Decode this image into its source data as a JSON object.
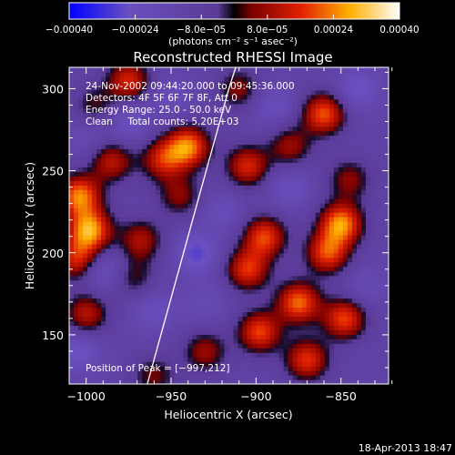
{
  "chart_data": {
    "type": "heatmap",
    "title": "Reconstructed RHESSI Image",
    "xlabel": "Heliocentric X (arcsec)",
    "ylabel": "Heliocentric Y (arcsec)",
    "xlim": [
      -1010,
      -822
    ],
    "ylim": [
      120,
      313
    ],
    "x_ticks": [
      -1000,
      -950,
      -900,
      -850
    ],
    "x_tick_labels": [
      "−1000",
      "−950",
      "−900",
      "−850"
    ],
    "y_ticks": [
      150,
      200,
      250,
      300
    ],
    "y_tick_labels": [
      "150",
      "200",
      "250",
      "300"
    ],
    "annotations": [
      "24-Nov-2002 09:44:20.000 to 09:45:36.000",
      "Detectors: 4F 5F 6F 7F 8F, Att 0",
      "Energy Range: 25.0 - 50.0 keV",
      "Clean     Total counts: 5.20E+03"
    ],
    "peak_label": "Position of Peak = [−997,212]",
    "peak": [
      -997,
      212
    ],
    "limb_points": [
      [
        -964,
        120
      ],
      [
        -956,
        150
      ],
      [
        -948,
        180
      ],
      [
        -940,
        210
      ],
      [
        -932,
        240
      ],
      [
        -924,
        270
      ],
      [
        -916,
        300
      ],
      [
        -912,
        313
      ]
    ],
    "colorbar": {
      "range": [
        -0.0004,
        0.0004
      ],
      "tick_values": [
        -0.0004,
        -0.00024,
        -8e-05,
        8e-05,
        0.00024,
        0.0004
      ],
      "tick_labels": [
        "−0.00040",
        "−0.00024",
        "−8.0e−05",
        "8.0e−05",
        "0.00024",
        "0.00040"
      ],
      "unit_label": "(photons cm⁻² s⁻¹ asec⁻²)"
    },
    "sources": [
      {
        "x": -998,
        "y": 214,
        "value": 0.0004
      },
      {
        "x": -1004,
        "y": 235,
        "value": 0.00036
      },
      {
        "x": -1005,
        "y": 196,
        "value": 0.00026
      },
      {
        "x": -985,
        "y": 256,
        "value": 0.00022
      },
      {
        "x": -975,
        "y": 305,
        "value": 0.00026
      },
      {
        "x": -955,
        "y": 257,
        "value": 0.00024
      },
      {
        "x": -968,
        "y": 208,
        "value": 0.0002
      },
      {
        "x": -972,
        "y": 185,
        "value": 0.00012
      },
      {
        "x": -940,
        "y": 265,
        "value": 0.00036
      },
      {
        "x": -945,
        "y": 235,
        "value": 0.00016
      },
      {
        "x": -905,
        "y": 253,
        "value": 0.00026
      },
      {
        "x": -880,
        "y": 265,
        "value": 0.00018
      },
      {
        "x": -860,
        "y": 285,
        "value": 0.00032
      },
      {
        "x": -845,
        "y": 245,
        "value": 0.00016
      },
      {
        "x": -850,
        "y": 218,
        "value": 0.00038
      },
      {
        "x": -858,
        "y": 200,
        "value": 0.0003
      },
      {
        "x": -895,
        "y": 210,
        "value": 0.0003
      },
      {
        "x": -905,
        "y": 190,
        "value": 0.00028
      },
      {
        "x": -875,
        "y": 170,
        "value": 0.00034
      },
      {
        "x": -898,
        "y": 152,
        "value": 0.0003
      },
      {
        "x": -848,
        "y": 160,
        "value": 0.0003
      },
      {
        "x": -870,
        "y": 135,
        "value": 0.00028
      },
      {
        "x": -930,
        "y": 140,
        "value": 0.00018
      },
      {
        "x": -960,
        "y": 125,
        "value": 0.00014
      },
      {
        "x": -1000,
        "y": 163,
        "value": 0.00022
      },
      {
        "x": -995,
        "y": 290,
        "value": 0.00012
      },
      {
        "x": -910,
        "y": 300,
        "value": 0.00016
      },
      {
        "x": -935,
        "y": 200,
        "value": -0.00022
      },
      {
        "x": -990,
        "y": 190,
        "value": -0.0002
      },
      {
        "x": -960,
        "y": 165,
        "value": -0.00016
      },
      {
        "x": -930,
        "y": 170,
        "value": -0.00012
      },
      {
        "x": -975,
        "y": 280,
        "value": -0.00018
      },
      {
        "x": -920,
        "y": 225,
        "value": -0.00014
      },
      {
        "x": -880,
        "y": 240,
        "value": -0.00016
      },
      {
        "x": -890,
        "y": 290,
        "value": -0.00016
      },
      {
        "x": -840,
        "y": 300,
        "value": -0.0002
      },
      {
        "x": -1000,
        "y": 270,
        "value": -0.00012
      },
      {
        "x": -1005,
        "y": 140,
        "value": -0.0002
      },
      {
        "x": -950,
        "y": 295,
        "value": -0.00014
      },
      {
        "x": -835,
        "y": 180,
        "value": -0.00012
      }
    ]
  },
  "footer": {
    "timestamp": "18-Apr-2013 18:47"
  },
  "colors": {
    "background": "#000000",
    "foreground": "#ffffff",
    "colormap": [
      "#0000ff",
      "#6a50c0",
      "#5a3a96",
      "#000000",
      "#c00000",
      "#ff5000",
      "#ffd000",
      "#ffffff"
    ]
  }
}
